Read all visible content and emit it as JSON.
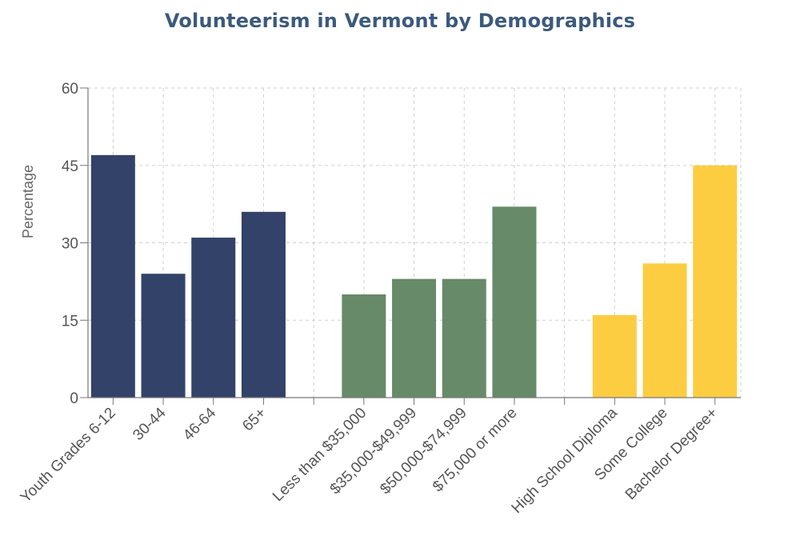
{
  "chart_data": {
    "type": "bar",
    "title": "Volunteerism in Vermont by Demographics",
    "xlabel": "",
    "ylabel": "Percentage",
    "ylim": [
      0,
      60
    ],
    "yticks": [
      "0",
      "15",
      "30",
      "45",
      "60"
    ],
    "grid": true,
    "groups": [
      {
        "color": "#334269",
        "categories": [
          "Youth Grades 6-12",
          "30-44",
          "46-64",
          "65+"
        ],
        "values": [
          47,
          24,
          31,
          36
        ]
      },
      {
        "color": "#678a69",
        "categories": [
          "Less than $35,000",
          "$35,000-$49,999",
          "$50,000-$74,999",
          "$75,000 or more"
        ],
        "values": [
          20,
          23,
          23,
          37
        ]
      },
      {
        "color": "#fccd41",
        "categories": [
          "High School Diploma",
          "Some College",
          "Bachelor Degree+"
        ],
        "values": [
          16,
          26,
          45
        ]
      }
    ]
  }
}
